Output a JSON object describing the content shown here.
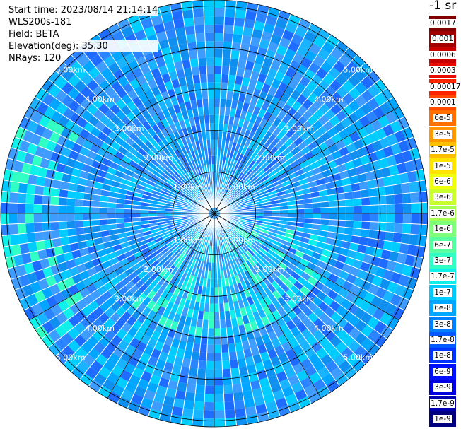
{
  "info": {
    "start_time": "Start time: 2023/08/14 21:14:14",
    "instrument": "WLS200s-181",
    "field": "Field: BETA",
    "elevation": "Elevation(deg): 35.30",
    "nrays": "NRays: 120"
  },
  "colorbar": {
    "unit_label": "-1 sr",
    "entries": [
      {
        "label": "0.0017",
        "color": "#7f0000"
      },
      {
        "label": "0.001",
        "color": "#a00000"
      },
      {
        "label": "0.0006",
        "color": "#c80000"
      },
      {
        "label": "0.0003",
        "color": "#e80a00"
      },
      {
        "label": "0.00017",
        "color": "#ff2400"
      },
      {
        "label": "0.0001",
        "color": "#ff4a00"
      },
      {
        "label": "6e-5",
        "color": "#ff7000"
      },
      {
        "label": "3e-5",
        "color": "#ff9800"
      },
      {
        "label": "1.7e-5",
        "color": "#ffbe00"
      },
      {
        "label": "1e-5",
        "color": "#ffe400"
      },
      {
        "label": "6e-6",
        "color": "#f0ff10"
      },
      {
        "label": "3e-6",
        "color": "#caff2e"
      },
      {
        "label": "1.7e-6",
        "color": "#a4ff52"
      },
      {
        "label": "1e-6",
        "color": "#7eff78"
      },
      {
        "label": "6e-7",
        "color": "#58ff9e"
      },
      {
        "label": "3e-7",
        "color": "#32ffc4"
      },
      {
        "label": "1.7e-7",
        "color": "#10f0ea"
      },
      {
        "label": "1e-7",
        "color": "#00ccff"
      },
      {
        "label": "6e-8",
        "color": "#00a6ff"
      },
      {
        "label": "3e-8",
        "color": "#0080ff"
      },
      {
        "label": "1.7e-8",
        "color": "#005aff"
      },
      {
        "label": "1e-8",
        "color": "#0034ff"
      },
      {
        "label": "6e-9",
        "color": "#0010ff"
      },
      {
        "label": "3e-9",
        "color": "#0000e0"
      },
      {
        "label": "1.7e-9",
        "color": "#0000b0"
      },
      {
        "label": "1e-9",
        "color": "#000080"
      }
    ]
  },
  "range_labels": [
    "1.00km",
    "2.00km",
    "3.00km",
    "4.00km",
    "5.00km"
  ],
  "colors": {
    "background_field": "#2f8fff",
    "ray_line": "#ffffff",
    "ring_line": "#000000"
  }
}
